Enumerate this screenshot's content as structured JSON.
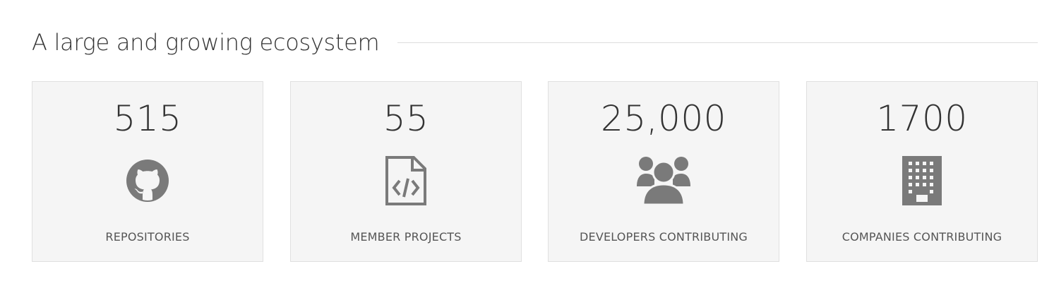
{
  "section": {
    "title": "A large and growing ecosystem"
  },
  "colors": {
    "icon": "#7a7a7a",
    "card_background": "#f5f5f5",
    "card_border": "#e0e0e0",
    "rule": "#dddddd"
  },
  "stats": [
    {
      "number": "515",
      "label": "REPOSITORIES",
      "icon": "github-icon"
    },
    {
      "number": "55",
      "label": "MEMBER PROJECTS",
      "icon": "code-file-icon"
    },
    {
      "number": "25,000",
      "label": "DEVELOPERS CONTRIBUTING",
      "icon": "users-group-icon"
    },
    {
      "number": "1700",
      "label": "COMPANIES CONTRIBUTING",
      "icon": "building-icon"
    }
  ]
}
